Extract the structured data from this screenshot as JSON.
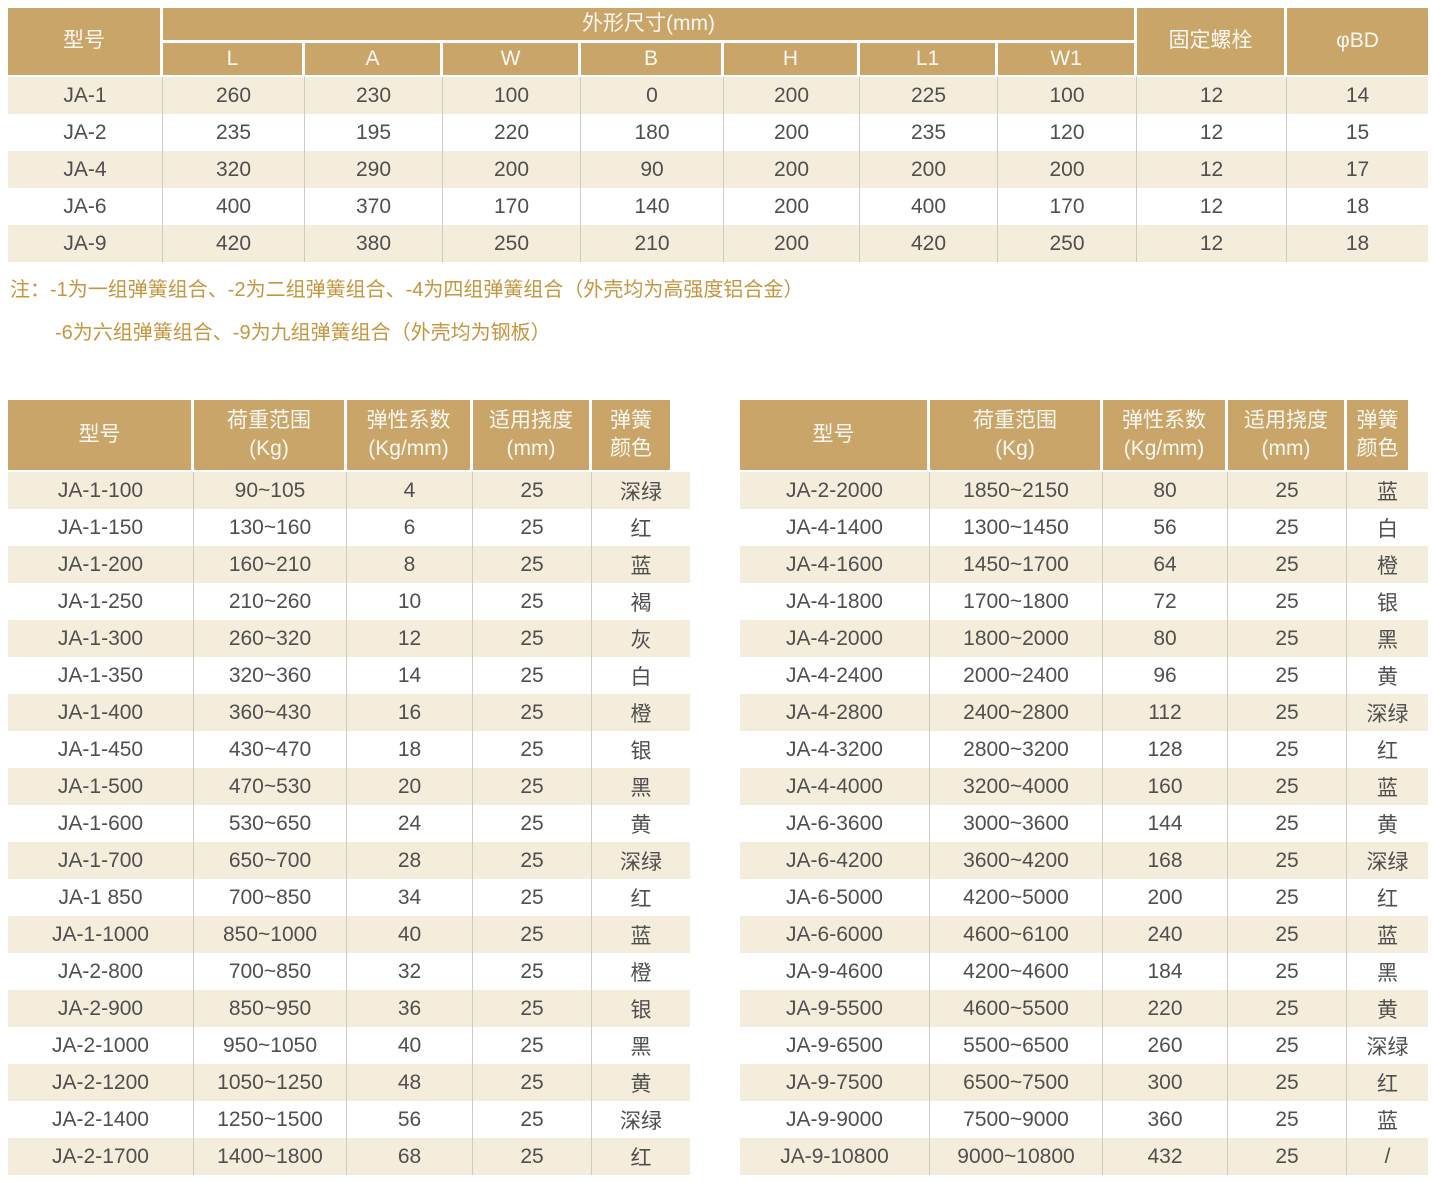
{
  "top_table": {
    "header": {
      "model": "型号",
      "dims_group": "外形尺寸(mm)",
      "dim_cols": [
        "L",
        "A",
        "W",
        "B",
        "H",
        "L1",
        "W1"
      ],
      "bolt": "固定螺栓",
      "bd": "φBD"
    },
    "rows": [
      [
        "JA-1",
        "260",
        "230",
        "100",
        "0",
        "200",
        "225",
        "100",
        "12",
        "14"
      ],
      [
        "JA-2",
        "235",
        "195",
        "220",
        "180",
        "200",
        "235",
        "120",
        "12",
        "15"
      ],
      [
        "JA-4",
        "320",
        "290",
        "200",
        "90",
        "200",
        "200",
        "200",
        "12",
        "17"
      ],
      [
        "JA-6",
        "400",
        "370",
        "170",
        "140",
        "200",
        "400",
        "170",
        "12",
        "18"
      ],
      [
        "JA-9",
        "420",
        "380",
        "250",
        "210",
        "200",
        "420",
        "250",
        "12",
        "18"
      ]
    ]
  },
  "notes": {
    "line1": "注：-1为一组弹簧组合、-2为二组弹簧组合、-4为四组弹簧组合（外壳均为高强度铝合金）",
    "line2": "-6为六组弹簧组合、-9为九组弹簧组合（外壳均为钢板）"
  },
  "spring_header": {
    "model": "型号",
    "load": "荷重范围\n(Kg)",
    "stiffness": "弹性系数\n(Kg/mm)",
    "deflection": "适用挠度\n(mm)",
    "color": "弹簧\n颜色"
  },
  "spring_left": {
    "rows": [
      [
        "JA-1-100",
        "90~105",
        "4",
        "25",
        "深绿"
      ],
      [
        "JA-1-150",
        "130~160",
        "6",
        "25",
        "红"
      ],
      [
        "JA-1-200",
        "160~210",
        "8",
        "25",
        "蓝"
      ],
      [
        "JA-1-250",
        "210~260",
        "10",
        "25",
        "褐"
      ],
      [
        "JA-1-300",
        "260~320",
        "12",
        "25",
        "灰"
      ],
      [
        "JA-1-350",
        "320~360",
        "14",
        "25",
        "白"
      ],
      [
        "JA-1-400",
        "360~430",
        "16",
        "25",
        "橙"
      ],
      [
        "JA-1-450",
        "430~470",
        "18",
        "25",
        "银"
      ],
      [
        "JA-1-500",
        "470~530",
        "20",
        "25",
        "黑"
      ],
      [
        "JA-1-600",
        "530~650",
        "24",
        "25",
        "黄"
      ],
      [
        "JA-1-700",
        "650~700",
        "28",
        "25",
        "深绿"
      ],
      [
        "JA-1 850",
        "700~850",
        "34",
        "25",
        "红"
      ],
      [
        "JA-1-1000",
        "850~1000",
        "40",
        "25",
        "蓝"
      ],
      [
        "JA-2-800",
        "700~850",
        "32",
        "25",
        "橙"
      ],
      [
        "JA-2-900",
        "850~950",
        "36",
        "25",
        "银"
      ],
      [
        "JA-2-1000",
        "950~1050",
        "40",
        "25",
        "黑"
      ],
      [
        "JA-2-1200",
        "1050~1250",
        "48",
        "25",
        "黄"
      ],
      [
        "JA-2-1400",
        "1250~1500",
        "56",
        "25",
        "深绿"
      ],
      [
        "JA-2-1700",
        "1400~1800",
        "68",
        "25",
        "红"
      ]
    ]
  },
  "spring_right": {
    "rows": [
      [
        "JA-2-2000",
        "1850~2150",
        "80",
        "25",
        "蓝"
      ],
      [
        "JA-4-1400",
        "1300~1450",
        "56",
        "25",
        "白"
      ],
      [
        "JA-4-1600",
        "1450~1700",
        "64",
        "25",
        "橙"
      ],
      [
        "JA-4-1800",
        "1700~1800",
        "72",
        "25",
        "银"
      ],
      [
        "JA-4-2000",
        "1800~2000",
        "80",
        "25",
        "黑"
      ],
      [
        "JA-4-2400",
        "2000~2400",
        "96",
        "25",
        "黄"
      ],
      [
        "JA-4-2800",
        "2400~2800",
        "112",
        "25",
        "深绿"
      ],
      [
        "JA-4-3200",
        "2800~3200",
        "128",
        "25",
        "红"
      ],
      [
        "JA-4-4000",
        "3200~4000",
        "160",
        "25",
        "蓝"
      ],
      [
        "JA-6-3600",
        "3000~3600",
        "144",
        "25",
        "黄"
      ],
      [
        "JA-6-4200",
        "3600~4200",
        "168",
        "25",
        "深绿"
      ],
      [
        "JA-6-5000",
        "4200~5000",
        "200",
        "25",
        "红"
      ],
      [
        "JA-6-6000",
        "4600~6100",
        "240",
        "25",
        "蓝"
      ],
      [
        "JA-9-4600",
        "4200~4600",
        "184",
        "25",
        "黑"
      ],
      [
        "JA-9-5500",
        "4600~5500",
        "220",
        "25",
        "黄"
      ],
      [
        "JA-9-6500",
        "5500~6500",
        "260",
        "25",
        "深绿"
      ],
      [
        "JA-9-7500",
        "6500~7500",
        "300",
        "25",
        "红"
      ],
      [
        "JA-9-9000",
        "7500~9000",
        "360",
        "25",
        "蓝"
      ],
      [
        "JA-9-10800",
        "9000~10800",
        "432",
        "25",
        "/"
      ]
    ]
  },
  "colors": {
    "header_bg": "#C9A56A",
    "header_text": "#FBF8F1",
    "row_stripe": "#F5EDDC",
    "row_alt": "#FFFFFF",
    "body_text": "#4F4F4F",
    "divider": "#CDCBC5",
    "note_text": "#C6953F"
  }
}
